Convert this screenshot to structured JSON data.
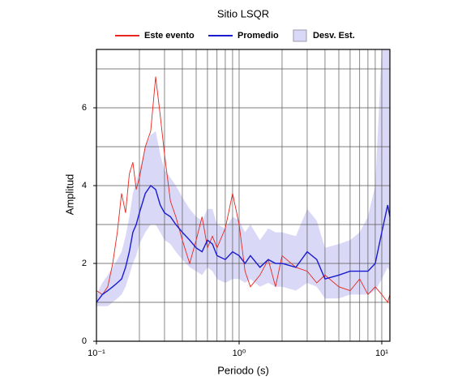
{
  "chart_data": {
    "type": "line",
    "title": "Sitio LSQR",
    "xlabel": "Periodo (s)",
    "ylabel": "Amplitud",
    "xscale": "log",
    "grid": true,
    "xlim": [
      0.1,
      11.4
    ],
    "ylim": [
      0,
      7.5
    ],
    "xticks": [
      {
        "value": 0.1,
        "label": "10⁻¹"
      },
      {
        "value": 1,
        "label": "10⁰"
      },
      {
        "value": 10,
        "label": "10¹"
      }
    ],
    "yticks": [
      0,
      2,
      4,
      6
    ],
    "xgrid": [
      0.2,
      0.3,
      0.4,
      0.5,
      0.6,
      0.7,
      0.8,
      0.9,
      1,
      2,
      3,
      4,
      5,
      6,
      7,
      8,
      9,
      10
    ],
    "ygrid": [
      1,
      2,
      3,
      4,
      5,
      6,
      7
    ],
    "x": [
      0.1,
      0.11,
      0.12,
      0.13,
      0.14,
      0.15,
      0.16,
      0.17,
      0.18,
      0.19,
      0.2,
      0.22,
      0.24,
      0.26,
      0.28,
      0.3,
      0.33,
      0.36,
      0.4,
      0.45,
      0.5,
      0.55,
      0.6,
      0.65,
      0.7,
      0.8,
      0.9,
      1.0,
      1.1,
      1.2,
      1.4,
      1.6,
      1.8,
      2.0,
      2.5,
      3.0,
      3.5,
      4,
      5,
      6,
      7,
      8,
      9,
      10,
      11,
      11.4
    ],
    "band": {
      "name": "Desv. Est.",
      "color": "#d9d9f7",
      "lower": [
        0.9,
        0.9,
        0.9,
        1.0,
        1.1,
        1.2,
        1.4,
        1.7,
        2.0,
        2.2,
        2.5,
        2.8,
        3.0,
        3.0,
        2.8,
        2.6,
        2.5,
        2.3,
        2.1,
        1.9,
        1.8,
        1.7,
        1.9,
        1.8,
        1.6,
        1.5,
        1.6,
        1.6,
        1.5,
        1.6,
        1.4,
        1.5,
        1.4,
        1.4,
        1.3,
        1.5,
        1.4,
        1.1,
        1.1,
        1.2,
        1.2,
        1.2,
        1.3,
        1.6,
        1.9,
        1.8
      ],
      "upper": [
        1.2,
        1.5,
        1.7,
        1.9,
        2.1,
        2.3,
        2.7,
        3.2,
        3.8,
        4.1,
        4.4,
        5.0,
        5.3,
        5.4,
        4.8,
        4.4,
        4.2,
        4.0,
        3.7,
        3.4,
        3.2,
        3.1,
        3.4,
        3.4,
        3.0,
        2.9,
        3.2,
        3.1,
        2.8,
        3.0,
        2.6,
        2.9,
        2.8,
        2.8,
        2.7,
        3.4,
        3.1,
        2.4,
        2.5,
        2.6,
        2.8,
        3.2,
        4.0,
        7.5,
        7.5,
        7.5
      ]
    },
    "series": [
      {
        "name": "Este evento",
        "color": "#e8261f",
        "values": [
          1.3,
          1.2,
          1.4,
          2.0,
          2.8,
          3.8,
          3.3,
          4.3,
          4.6,
          3.9,
          4.2,
          5.0,
          5.4,
          6.8,
          5.8,
          4.8,
          3.6,
          3.2,
          2.6,
          2.0,
          2.6,
          3.2,
          2.4,
          2.7,
          2.4,
          2.9,
          3.8,
          3.0,
          1.8,
          1.4,
          1.7,
          2.1,
          1.4,
          2.2,
          1.9,
          1.8,
          1.5,
          1.7,
          1.4,
          1.3,
          1.6,
          1.2,
          1.4,
          1.2,
          1.0,
          1.2
        ]
      },
      {
        "name": "Promedio",
        "color": "#1a1ad0",
        "values": [
          1.0,
          1.2,
          1.3,
          1.4,
          1.5,
          1.6,
          1.9,
          2.3,
          2.8,
          3.0,
          3.3,
          3.8,
          4.0,
          3.9,
          3.5,
          3.3,
          3.2,
          3.0,
          2.8,
          2.6,
          2.4,
          2.3,
          2.6,
          2.5,
          2.2,
          2.1,
          2.3,
          2.2,
          2.0,
          2.2,
          1.9,
          2.1,
          2.0,
          2.0,
          1.9,
          2.3,
          2.1,
          1.6,
          1.7,
          1.8,
          1.8,
          1.8,
          2.0,
          2.8,
          3.5,
          3.2
        ]
      }
    ]
  }
}
